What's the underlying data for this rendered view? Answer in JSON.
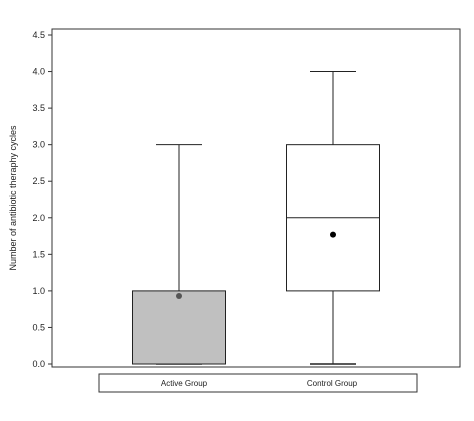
{
  "chart_data": {
    "type": "box",
    "ylabel": "Number of antibiotic theraphy cycles",
    "ylim": [
      0,
      4.5
    ],
    "yticks": [
      "0.0",
      "0.5",
      "1.0",
      "1.5",
      "2.0",
      "2.5",
      "3.0",
      "3.5",
      "4.0",
      "4.5"
    ],
    "grid": false,
    "legend_position": "bottom",
    "series": [
      {
        "name": "Active Group",
        "min": 0,
        "q1": 0,
        "median": 0,
        "q3": 1,
        "max": 3,
        "mean": 0.93,
        "fill": "#c0c0c0",
        "mean_color": "#555555"
      },
      {
        "name": "Control Group",
        "min": 0,
        "q1": 1,
        "median": 2,
        "q3": 3,
        "max": 4,
        "mean": 1.77,
        "fill": "#ffffff",
        "mean_color": "#000000"
      }
    ]
  }
}
